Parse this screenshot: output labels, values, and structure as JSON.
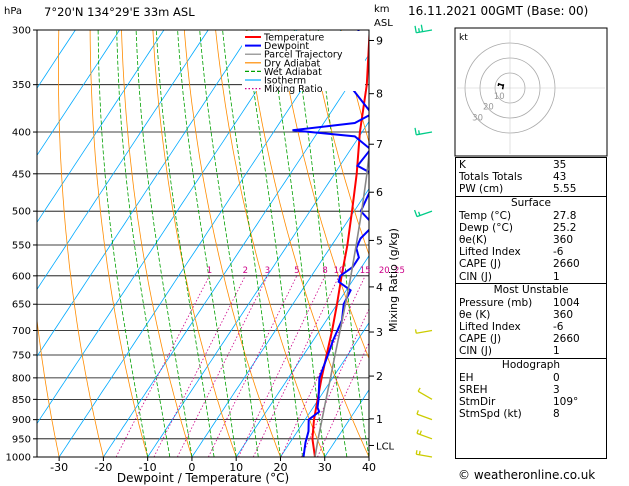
{
  "header": {
    "location": "7°20'N 134°29'E 33m ASL",
    "date": "16.11.2021 00GMT (Base: 00)",
    "hpa_label": "hPa",
    "km_label": "km",
    "asl_label": "ASL"
  },
  "chart_data": {
    "type": "line",
    "xlabel": "Dewpoint / Temperature (°C)",
    "ylabel_left": "hPa",
    "ylabel_right": "Mixing Ratio (g/kg)",
    "xlim": [
      -35,
      40
    ],
    "ylim_hpa": [
      1000,
      300
    ],
    "x_ticks": [
      -30,
      -20,
      -10,
      0,
      10,
      20,
      30,
      40
    ],
    "pressure_ticks": [
      300,
      350,
      400,
      450,
      500,
      550,
      600,
      650,
      700,
      750,
      800,
      850,
      900,
      950,
      1000
    ],
    "km_ticks": [
      {
        "label": "9",
        "p": 309
      },
      {
        "label": "8",
        "p": 359
      },
      {
        "label": "7",
        "p": 414
      },
      {
        "label": "6",
        "p": 474
      },
      {
        "label": "5",
        "p": 543
      },
      {
        "label": "4",
        "p": 619
      },
      {
        "label": "3",
        "p": 703
      },
      {
        "label": "2",
        "p": 796
      },
      {
        "label": "1",
        "p": 898
      },
      {
        "label": "LCL",
        "p": 968
      }
    ],
    "mixing_ratio_labels": [
      "1",
      "2",
      "3",
      "5",
      "8",
      "10",
      "15",
      "20",
      "25"
    ],
    "mixing_ratio_values": [
      1,
      2,
      3,
      5,
      8,
      10,
      15,
      20,
      25
    ],
    "legend": [
      "Temperature",
      "Dewpoint",
      "Parcel Trajectory",
      "Dry Adiabat",
      "Wet Adiabat",
      "Isotherm",
      "Mixing Ratio"
    ],
    "colors": {
      "temperature": "#ff0000",
      "dewpoint": "#0000ff",
      "parcel": "#888888",
      "dry_adiabat": "#ff8c00",
      "wet_adiabat": "#00a000",
      "isotherm": "#00aaff",
      "mixing_ratio": "#cc0088"
    },
    "series": [
      {
        "name": "Temperature",
        "points": [
          [
            1000,
            27.8
          ],
          [
            950,
            24.5
          ],
          [
            900,
            22.0
          ],
          [
            850,
            19.8
          ],
          [
            800,
            17.5
          ],
          [
            750,
            15.2
          ],
          [
            700,
            12.8
          ],
          [
            650,
            10.0
          ],
          [
            600,
            6.8
          ],
          [
            550,
            3.5
          ],
          [
            500,
            -0.5
          ],
          [
            450,
            -5.0
          ],
          [
            400,
            -10.5
          ],
          [
            350,
            -16.0
          ],
          [
            300,
            -23.5
          ]
        ]
      },
      {
        "name": "Dewpoint",
        "points": [
          [
            1000,
            25.2
          ],
          [
            960,
            23.5
          ],
          [
            930,
            22.5
          ],
          [
            900,
            20.8
          ],
          [
            880,
            22.0
          ],
          [
            870,
            21.0
          ],
          [
            850,
            20.0
          ],
          [
            800,
            17.0
          ],
          [
            750,
            15.5
          ],
          [
            720,
            14.5
          ],
          [
            700,
            14.0
          ],
          [
            680,
            13.5
          ],
          [
            650,
            11.5
          ],
          [
            625,
            11.0
          ],
          [
            610,
            7.0
          ],
          [
            600,
            6.5
          ],
          [
            585,
            8.0
          ],
          [
            570,
            8.0
          ],
          [
            555,
            6.0
          ],
          [
            540,
            5.5
          ],
          [
            520,
            6.5
          ],
          [
            500,
            1.5
          ],
          [
            470,
            0.5
          ],
          [
            450,
            -1.5
          ],
          [
            440,
            -6.0
          ],
          [
            420,
            -5.5
          ],
          [
            405,
            -11.0
          ],
          [
            398,
            -26.0
          ],
          [
            390,
            -13.0
          ],
          [
            380,
            -10.5
          ],
          [
            350,
            -20.0
          ],
          [
            330,
            -21.0
          ],
          [
            310,
            -25.0
          ],
          [
            300,
            -26.0
          ]
        ]
      },
      {
        "name": "Parcel Trajectory",
        "points": [
          [
            1000,
            27.8
          ],
          [
            950,
            25.8
          ],
          [
            900,
            23.8
          ],
          [
            850,
            21.7
          ],
          [
            800,
            19.5
          ],
          [
            750,
            17.1
          ],
          [
            700,
            14.6
          ],
          [
            650,
            11.9
          ],
          [
            600,
            8.9
          ],
          [
            550,
            5.5
          ],
          [
            500,
            1.7
          ],
          [
            450,
            -2.7
          ],
          [
            400,
            -7.9
          ],
          [
            350,
            -14.2
          ],
          [
            300,
            -22.0
          ]
        ]
      }
    ],
    "wind_barbs": [
      {
        "p": 1000,
        "dir": 100,
        "kt": 8
      },
      {
        "p": 950,
        "dir": 110,
        "kt": 8
      },
      {
        "p": 900,
        "dir": 110,
        "kt": 5
      },
      {
        "p": 850,
        "dir": 120,
        "kt": 5
      },
      {
        "p": 700,
        "dir": 80,
        "kt": 5
      },
      {
        "p": 500,
        "dir": 70,
        "kt": 10
      },
      {
        "p": 400,
        "dir": 80,
        "kt": 10
      },
      {
        "p": 300,
        "dir": 80,
        "kt": 15
      }
    ]
  },
  "hodograph": {
    "unit": "kt",
    "ring_labels": [
      "30",
      "20",
      "10"
    ],
    "ring_values": [
      30,
      20,
      10
    ],
    "trace": [
      [
        100,
        8
      ],
      [
        110,
        8
      ],
      [
        110,
        5
      ],
      [
        120,
        5
      ],
      [
        80,
        5
      ]
    ]
  },
  "indices": {
    "k_label": "K",
    "k": "35",
    "tt_label": "Totals Totals",
    "tt": "43",
    "pw_label": "PW (cm)",
    "pw": "5.55"
  },
  "surface": {
    "title": "Surface",
    "rows": [
      {
        "k": "Temp (°C)",
        "v": "27.8"
      },
      {
        "k": "Dewp (°C)",
        "v": "25.2"
      },
      {
        "k": "θe(K)",
        "v": "360"
      },
      {
        "k": "Lifted Index",
        "v": "-6"
      },
      {
        "k": "CAPE (J)",
        "v": "2660"
      },
      {
        "k": "CIN (J)",
        "v": "1"
      }
    ]
  },
  "most_unstable": {
    "title": "Most Unstable",
    "rows": [
      {
        "k": "Pressure (mb)",
        "v": "1004"
      },
      {
        "k": "θe (K)",
        "v": "360"
      },
      {
        "k": "Lifted Index",
        "v": "-6"
      },
      {
        "k": "CAPE (J)",
        "v": "2660"
      },
      {
        "k": "CIN (J)",
        "v": "1"
      }
    ]
  },
  "hodograph_table": {
    "title": "Hodograph",
    "rows": [
      {
        "k": "EH",
        "v": "0"
      },
      {
        "k": "SREH",
        "v": "3"
      },
      {
        "k": "StmDir",
        "v": "109°"
      },
      {
        "k": "StmSpd (kt)",
        "v": "8"
      }
    ]
  },
  "footer": {
    "site": "© weatheronline.co.uk"
  }
}
